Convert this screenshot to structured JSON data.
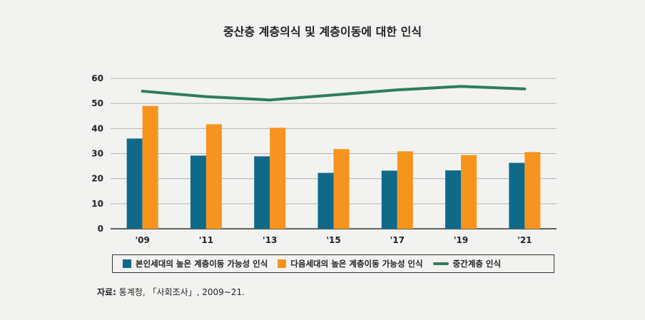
{
  "chart_data": {
    "type": "bar",
    "title": "중산층 계층의식 및 계층이동에 대한 인식",
    "categories": [
      "'09",
      "'11",
      "'13",
      "'15",
      "'17",
      "'19",
      "'21"
    ],
    "ylim": [
      0,
      60
    ],
    "yticks": [
      0,
      10,
      20,
      30,
      40,
      50,
      60
    ],
    "grid": true,
    "series": [
      {
        "name": "본인세대의 높은 계층이동 가능성 인식",
        "kind": "bar",
        "color": "#0f6a8a",
        "values": [
          36,
          29.2,
          28.9,
          22.3,
          23.2,
          23.3,
          26.3
        ]
      },
      {
        "name": "다음세대의 높은 계층이동 가능성 인식",
        "kind": "bar",
        "color": "#f7941d",
        "values": [
          49,
          41.7,
          40.3,
          31.8,
          30.9,
          29.4,
          30.6
        ]
      },
      {
        "name": "중간계층 인식",
        "kind": "line",
        "color": "#2e7d5b",
        "values": [
          54.9,
          52.7,
          51.4,
          53.4,
          55.4,
          56.8,
          55.8
        ]
      }
    ],
    "legend_position": "bottom"
  },
  "source": {
    "label": "자료:",
    "text": "통계청, 「사회조사」, 2009~21."
  }
}
